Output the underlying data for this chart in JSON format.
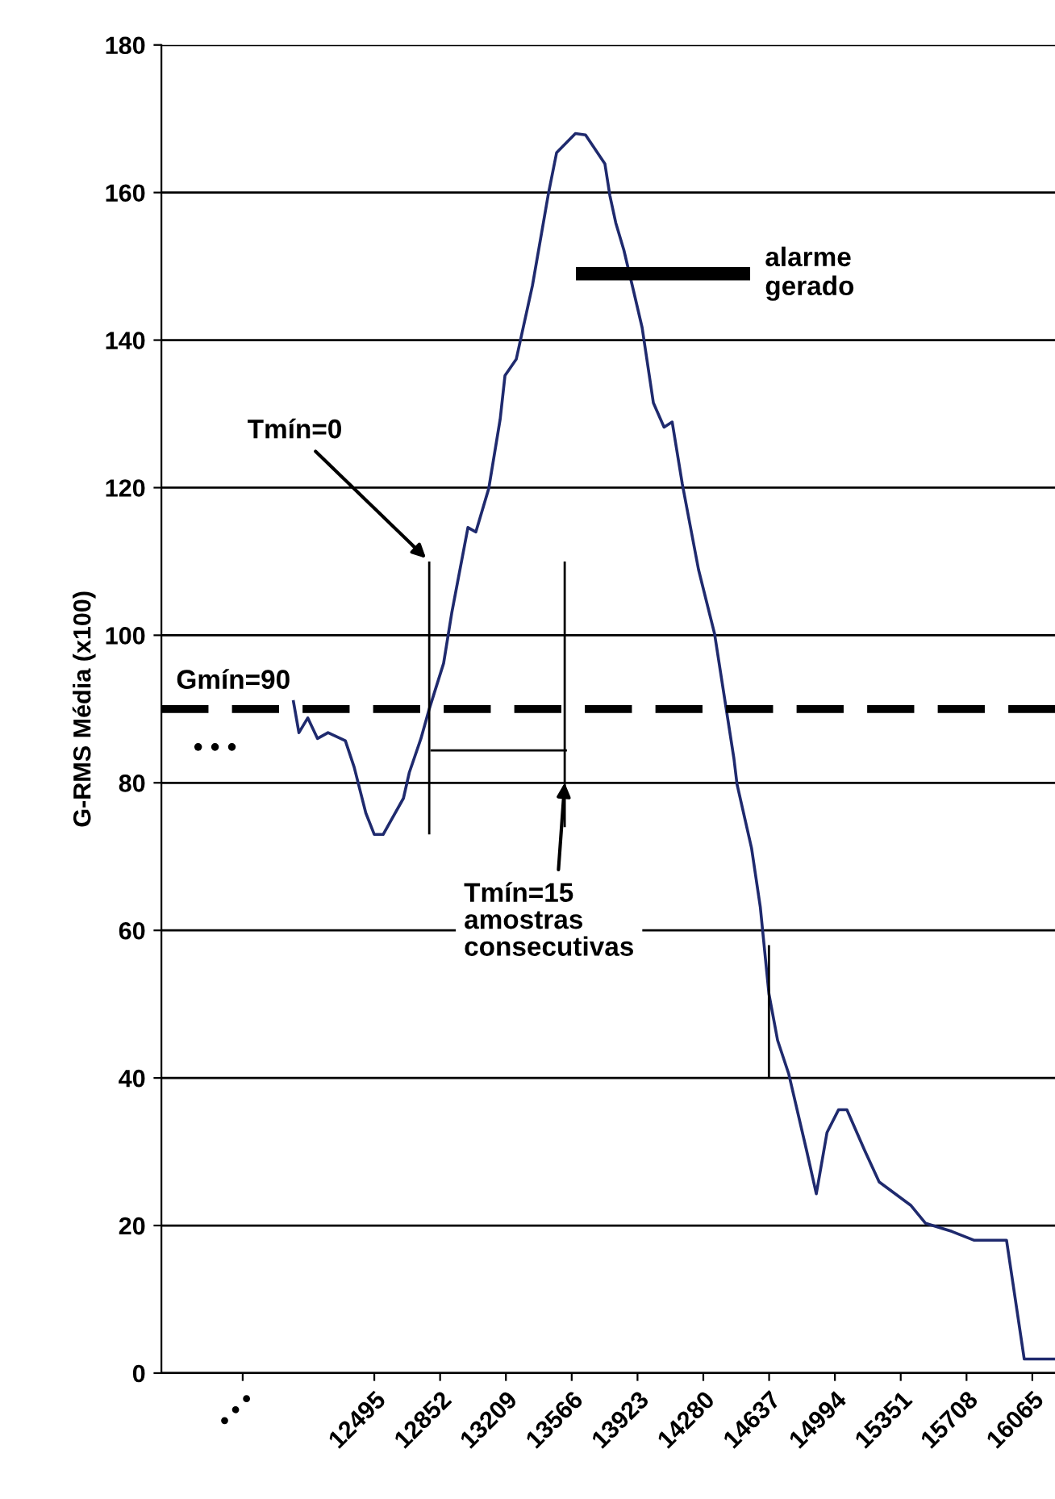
{
  "chart_data": {
    "type": "line",
    "ylabel": "G-RMS Média (x100)",
    "xlim": [
      11340,
      16188
    ],
    "ylim": [
      0,
      180
    ],
    "xticks": [
      {
        "value": 11781,
        "label": "• • •"
      },
      12495,
      12852,
      13209,
      13566,
      13923,
      14280,
      14637,
      14994,
      15351,
      15708,
      16065
    ],
    "yticks": [
      0,
      20,
      40,
      60,
      80,
      100,
      120,
      140,
      160,
      180
    ],
    "grid": "y",
    "marker": "none",
    "line_style": "solid",
    "series": [
      {
        "color": "#1f2a6e",
        "x": [
          12055,
          12086,
          12134,
          12187,
          12244,
          12338,
          12386,
          12449,
          12495,
          12543,
          12653,
          12685,
          12748,
          12793,
          12871,
          12915,
          13003,
          13046,
          13116,
          13178,
          13204,
          13265,
          13353,
          13440,
          13484,
          13586,
          13641,
          13746,
          13773,
          13805,
          13849,
          13904,
          13948,
          14009,
          14067,
          14111,
          14166,
          14254,
          14341,
          14446,
          14463,
          14542,
          14589,
          14636,
          14683,
          14744,
          14840,
          14893,
          14951,
          15014,
          15059,
          15155,
          15234,
          15407,
          15486,
          15628,
          15750,
          15925,
          16021,
          16188
        ],
        "values": [
          91.2,
          86.8,
          88.8,
          86,
          86.8,
          85.7,
          82.1,
          75.9,
          73,
          73,
          77.9,
          81.4,
          86,
          90,
          96.2,
          103,
          114.6,
          114,
          119.9,
          129.3,
          135.2,
          137.4,
          147.4,
          159.9,
          165.4,
          168,
          167.8,
          163.9,
          159.6,
          155.9,
          152.2,
          146.4,
          141.7,
          131.5,
          128.2,
          128.9,
          120.5,
          108.9,
          100.2,
          83.3,
          79.8,
          71.1,
          63.2,
          51.4,
          45.1,
          40.5,
          30.2,
          24.3,
          32.6,
          35.7,
          35.7,
          30.2,
          25.9,
          22.7,
          20.3,
          19.2,
          18,
          18,
          1.9,
          1.9
        ]
      },
      {
        "name": "alarme\ngerado",
        "color": "#000000",
        "x": [
          13589,
          14534
        ],
        "values": [
          149,
          149
        ]
      },
      {
        "color": "#000000",
        "x": [
          12793,
          12793
        ],
        "values": [
          110,
          73
        ]
      },
      {
        "color": "#000000",
        "x": [
          13528,
          13528
        ],
        "values": [
          110,
          74
        ]
      },
      {
        "color": "#000000",
        "x": [
          12800,
          13540
        ],
        "values": [
          84.4,
          84.4
        ]
      },
      {
        "color": "#000000",
        "x": [
          14636,
          14636
        ],
        "values": [
          58,
          40
        ]
      }
    ],
    "ref_lines": [
      {
        "axis": "y",
        "value": 90,
        "label": "Gmín=90",
        "color": "#000000",
        "line_style": "dashed"
      }
    ],
    "annotations": [
      {
        "text": "Tmín=0",
        "x": 12793,
        "y": 110
      },
      {
        "text": "Tmín=15\namostras\nconsecutivas",
        "x": 13528,
        "y": 80
      },
      "• • •"
    ]
  }
}
